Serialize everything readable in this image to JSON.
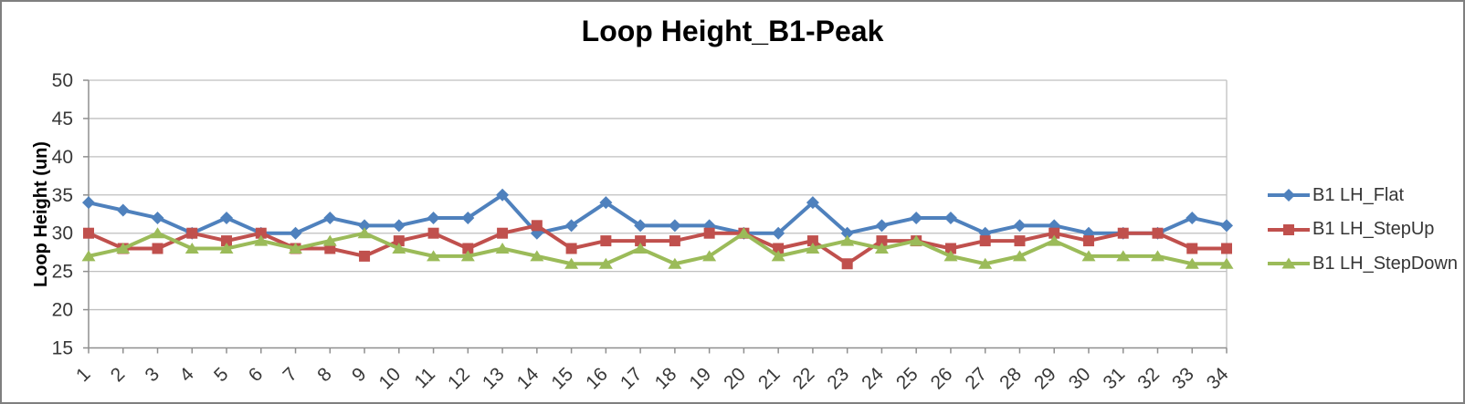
{
  "chart_data": {
    "type": "line",
    "title": "Loop Height_B1-Peak",
    "xlabel": "",
    "ylabel": "Loop Height (un)",
    "categories": [
      1,
      2,
      3,
      4,
      5,
      6,
      7,
      8,
      9,
      10,
      11,
      12,
      13,
      14,
      15,
      16,
      17,
      18,
      19,
      20,
      21,
      22,
      23,
      24,
      25,
      26,
      27,
      28,
      29,
      30,
      31,
      32,
      33,
      34
    ],
    "ylim": [
      15,
      50
    ],
    "yticks": [
      15,
      20,
      25,
      30,
      35,
      40,
      45,
      50
    ],
    "grid": true,
    "legend_position": "right",
    "series": [
      {
        "name": "B1 LH_Flat",
        "color": "#4F81BD",
        "marker": "diamond",
        "values": [
          34,
          33,
          32,
          30,
          32,
          30,
          30,
          32,
          31,
          31,
          32,
          32,
          35,
          30,
          31,
          34,
          31,
          31,
          31,
          30,
          30,
          34,
          30,
          31,
          32,
          32,
          30,
          31,
          31,
          30,
          30,
          30,
          32,
          31
        ]
      },
      {
        "name": "B1 LH_StepUp",
        "color": "#C0504D",
        "marker": "square",
        "values": [
          30,
          28,
          28,
          30,
          29,
          30,
          28,
          28,
          27,
          29,
          30,
          28,
          30,
          31,
          28,
          29,
          29,
          29,
          30,
          30,
          28,
          29,
          26,
          29,
          29,
          28,
          29,
          29,
          30,
          29,
          30,
          30,
          28,
          28
        ]
      },
      {
        "name": "B1 LH_StepDown",
        "color": "#9BBB59",
        "marker": "triangle",
        "values": [
          27,
          28,
          30,
          28,
          28,
          29,
          28,
          29,
          30,
          28,
          27,
          27,
          28,
          27,
          26,
          26,
          28,
          26,
          27,
          30,
          27,
          28,
          29,
          28,
          29,
          27,
          26,
          27,
          29,
          27,
          27,
          27,
          26,
          26
        ]
      }
    ],
    "colors": {
      "gridline": "#BFBFBF",
      "axis": "#8F8F8F",
      "tick_label": "#383838",
      "frame_border": "#7F7F7F"
    }
  }
}
